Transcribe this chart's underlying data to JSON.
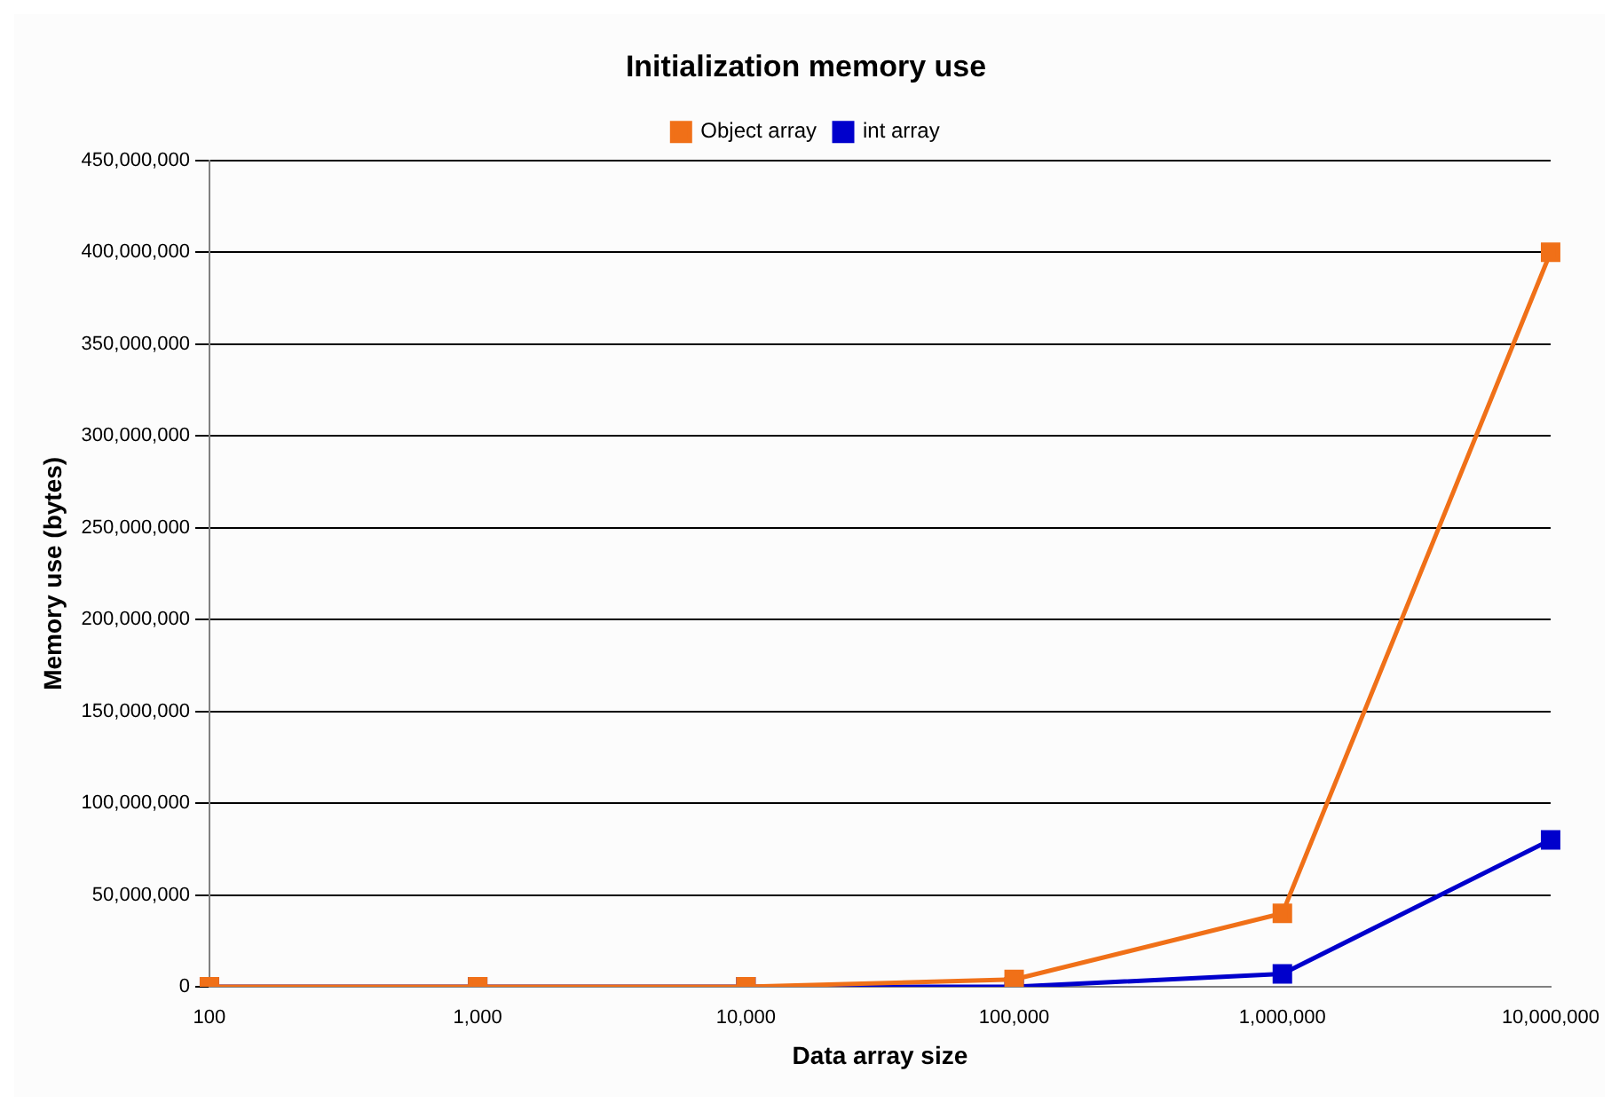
{
  "chart_data": {
    "type": "line",
    "title": "Initialization memory use",
    "xlabel": "Data array size",
    "ylabel": "Memory use (bytes)",
    "categories": [
      "100",
      "1,000",
      "10,000",
      "100,000",
      "1,000,000",
      "10,000,000"
    ],
    "series": [
      {
        "name": "Object array",
        "color": "#f07018",
        "values": [
          0,
          0,
          0,
          4000000,
          40000000,
          400000000
        ]
      },
      {
        "name": "int array",
        "color": "#0000cc",
        "values": [
          0,
          0,
          0,
          0,
          7000000,
          80000000
        ]
      }
    ],
    "ylim": [
      0,
      450000000
    ],
    "yticks": [
      0,
      {
        "value": 50000000,
        "label": "50,000,000"
      },
      {
        "value": 100000000,
        "label": "100,000,000"
      },
      {
        "value": 150000000,
        "label": "150,000,000"
      },
      {
        "value": 200000000,
        "label": "200,000,000"
      },
      {
        "value": 250000000,
        "label": "250,000,000"
      },
      {
        "value": 300000000,
        "label": "300,000,000"
      },
      {
        "value": 350000000,
        "label": "350,000,000"
      },
      {
        "value": 400000000,
        "label": "400,000,000"
      },
      {
        "value": 450000000,
        "label": "450,000,000"
      }
    ],
    "grid": "y",
    "legend": "top",
    "marker": "square",
    "line_style": "solid"
  }
}
